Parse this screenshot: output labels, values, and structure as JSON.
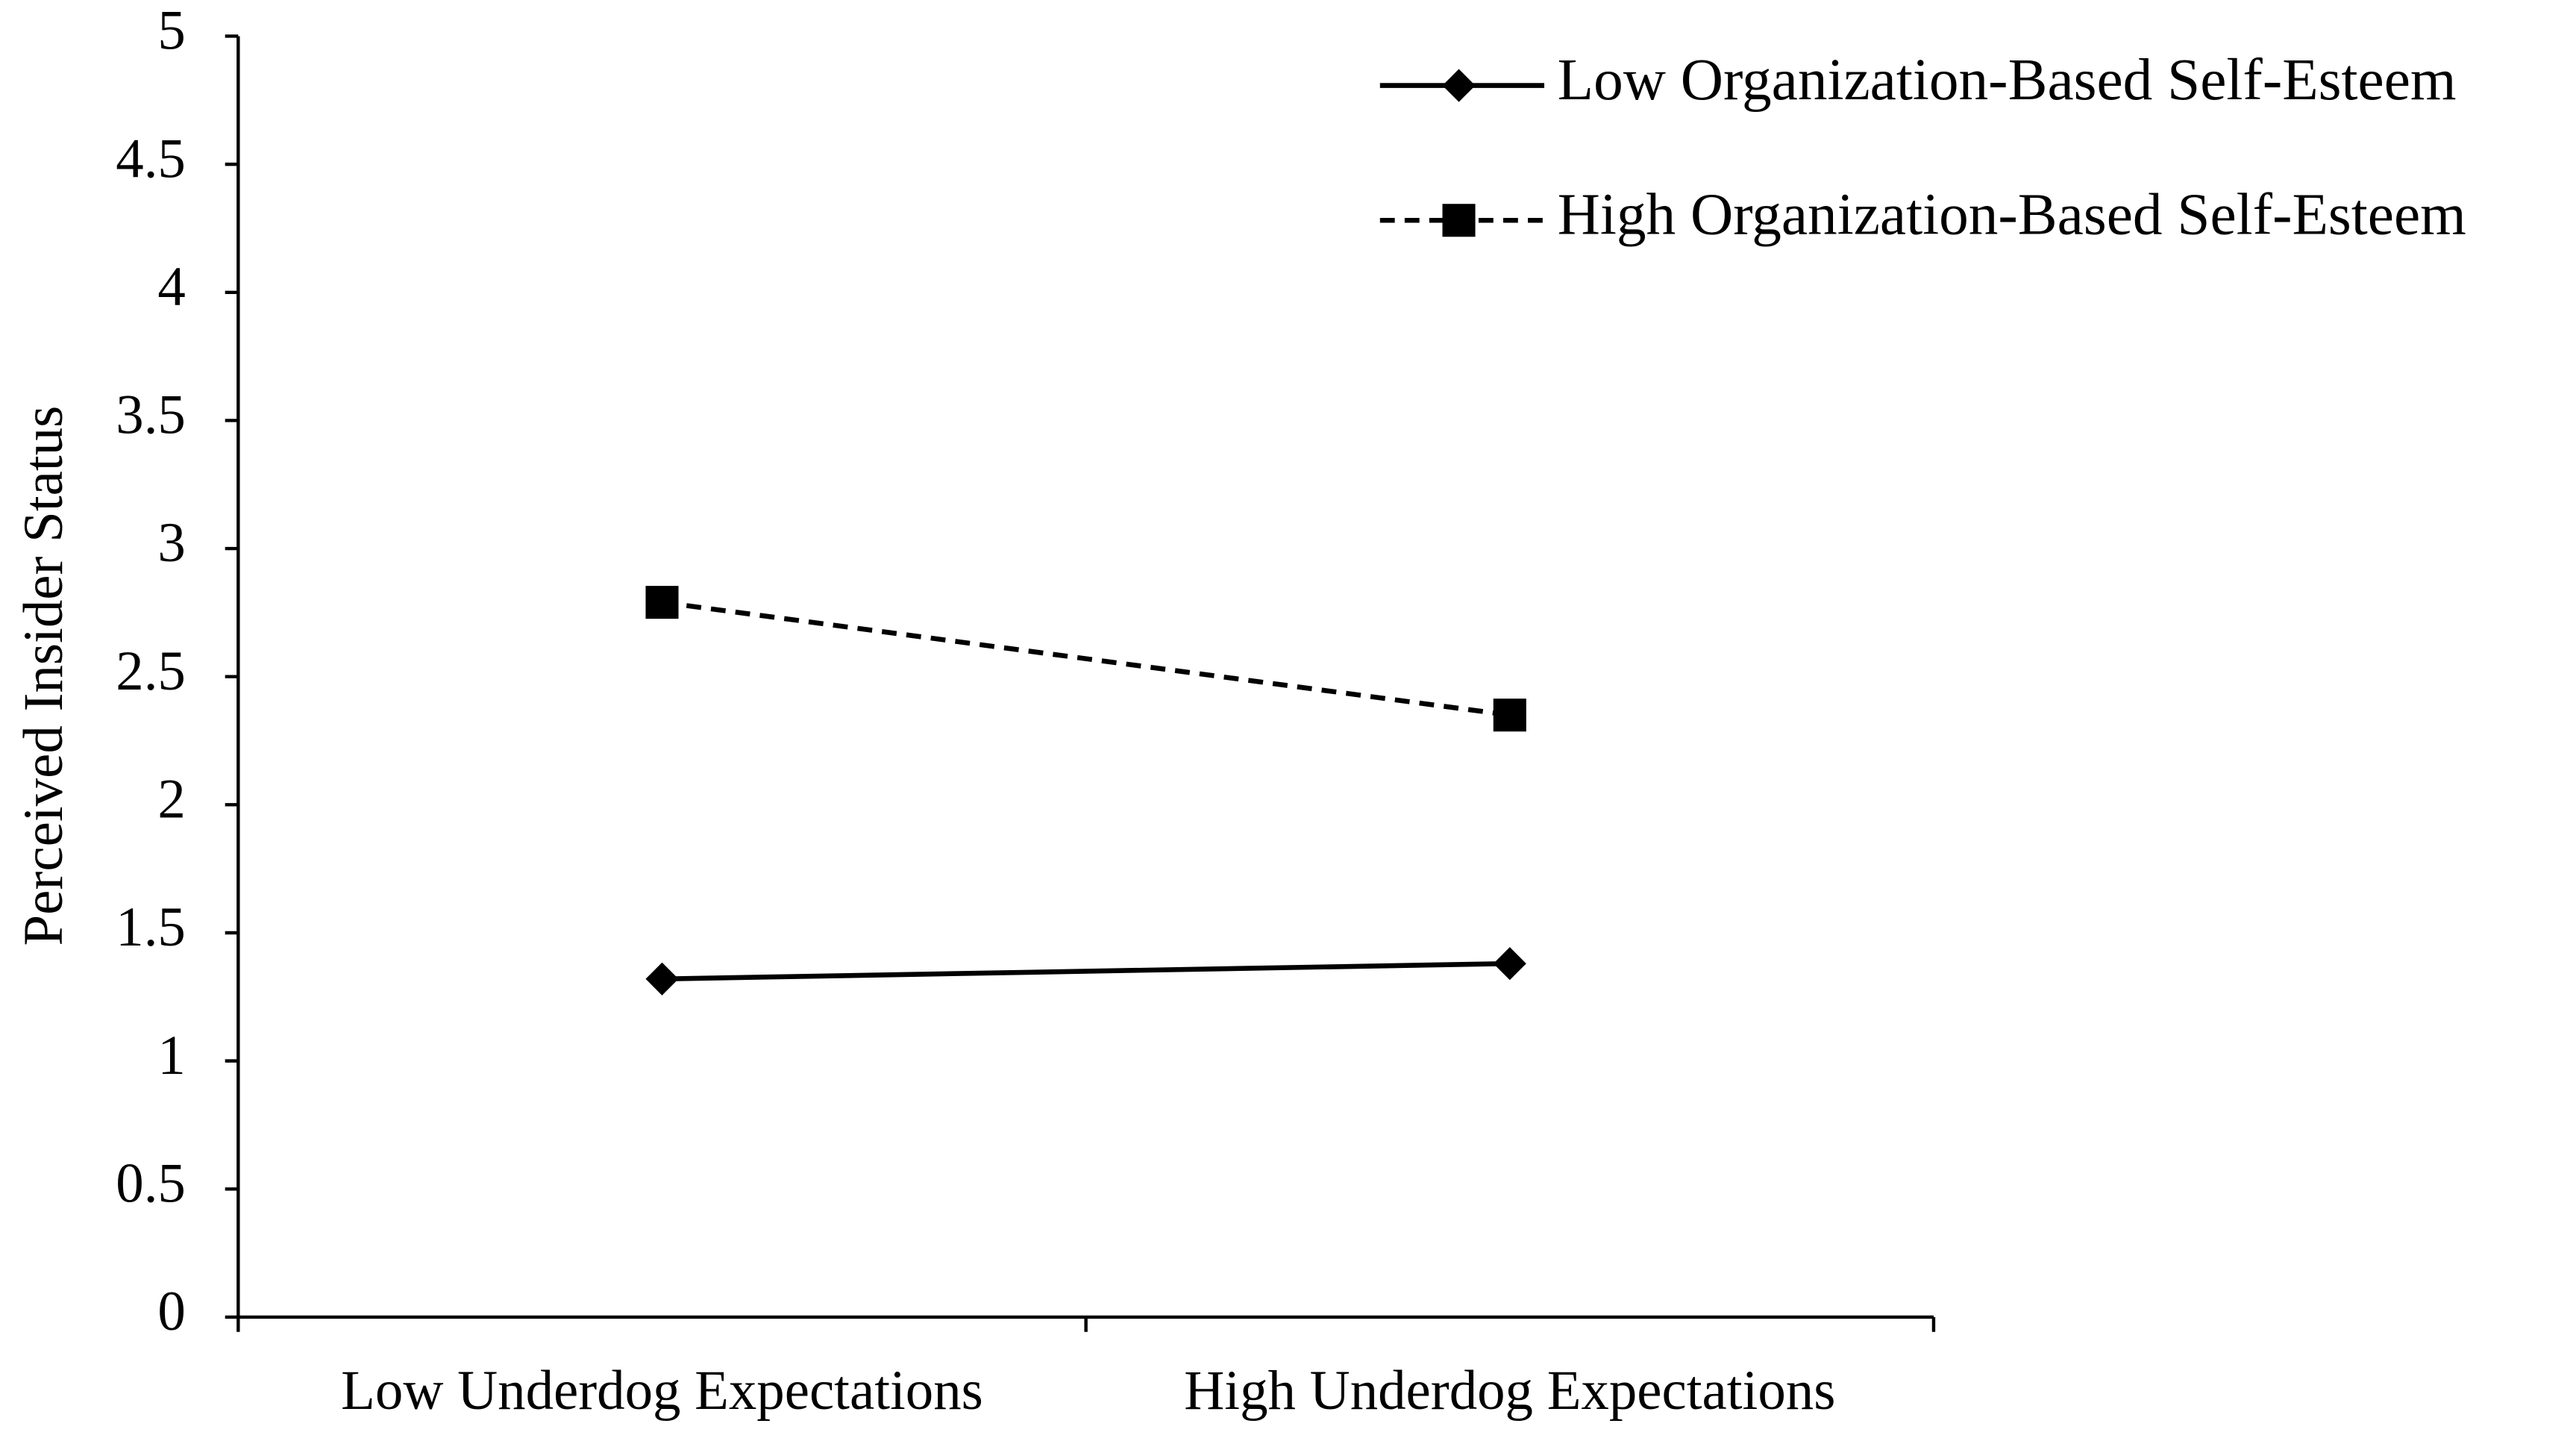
{
  "chart_data": {
    "type": "line",
    "y_label": "Perceived Insider Status",
    "categories": [
      "Low Underdog Expectations",
      "High Underdog Expectations"
    ],
    "series": [
      {
        "name": "Low Organization-Based Self-Esteem",
        "color": "#000000",
        "line_style": "solid",
        "marker": "diamond",
        "values": [
          1.32,
          1.38
        ]
      },
      {
        "name": "High Organization-Based Self-Esteem",
        "color": "#000000",
        "line_style": "dashed",
        "marker": "square",
        "values": [
          2.79,
          2.35
        ]
      }
    ],
    "ylim": [
      0,
      5
    ],
    "yticks": [
      0,
      0.5,
      1,
      1.5,
      2,
      2.5,
      3,
      3.5,
      4,
      4.5,
      5
    ],
    "grid": false,
    "legend": "top-right"
  }
}
